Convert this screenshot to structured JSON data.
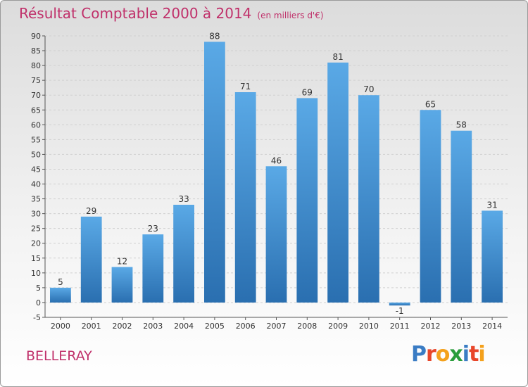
{
  "header": {
    "title": "Résultat Comptable 2000 à 2014",
    "subtitle": "(en milliers d'€)"
  },
  "footer": {
    "commune": "BELLERAY",
    "logo_letters": [
      "P",
      "r",
      "o",
      "x",
      "i",
      "t",
      "i"
    ]
  },
  "colors": {
    "title": "#c0306a",
    "bar_top": "#5aa9e6",
    "bar_bottom": "#2a6fb0",
    "grid": "#d0d0d0",
    "logo": [
      "#3a7cc4",
      "#e8462a",
      "#f4a11c",
      "#2a9d3c",
      "#3a7cc4",
      "#e8462a",
      "#f4a11c"
    ]
  },
  "chart_data": {
    "type": "bar",
    "title": "Résultat Comptable 2000 à 2014",
    "subtitle": "(en milliers d'€)",
    "categories": [
      "2000",
      "2001",
      "2002",
      "2003",
      "2004",
      "2005",
      "2006",
      "2007",
      "2008",
      "2009",
      "2010",
      "2011",
      "2012",
      "2013",
      "2014"
    ],
    "values": [
      5,
      29,
      12,
      23,
      33,
      88,
      71,
      46,
      69,
      81,
      70,
      -1,
      65,
      58,
      31
    ],
    "ylim": [
      -5,
      90
    ],
    "yticks": [
      -5,
      0,
      5,
      10,
      15,
      20,
      25,
      30,
      35,
      40,
      45,
      50,
      55,
      60,
      65,
      70,
      75,
      80,
      85,
      90
    ],
    "xlabel": "",
    "ylabel": "",
    "grid": true
  }
}
